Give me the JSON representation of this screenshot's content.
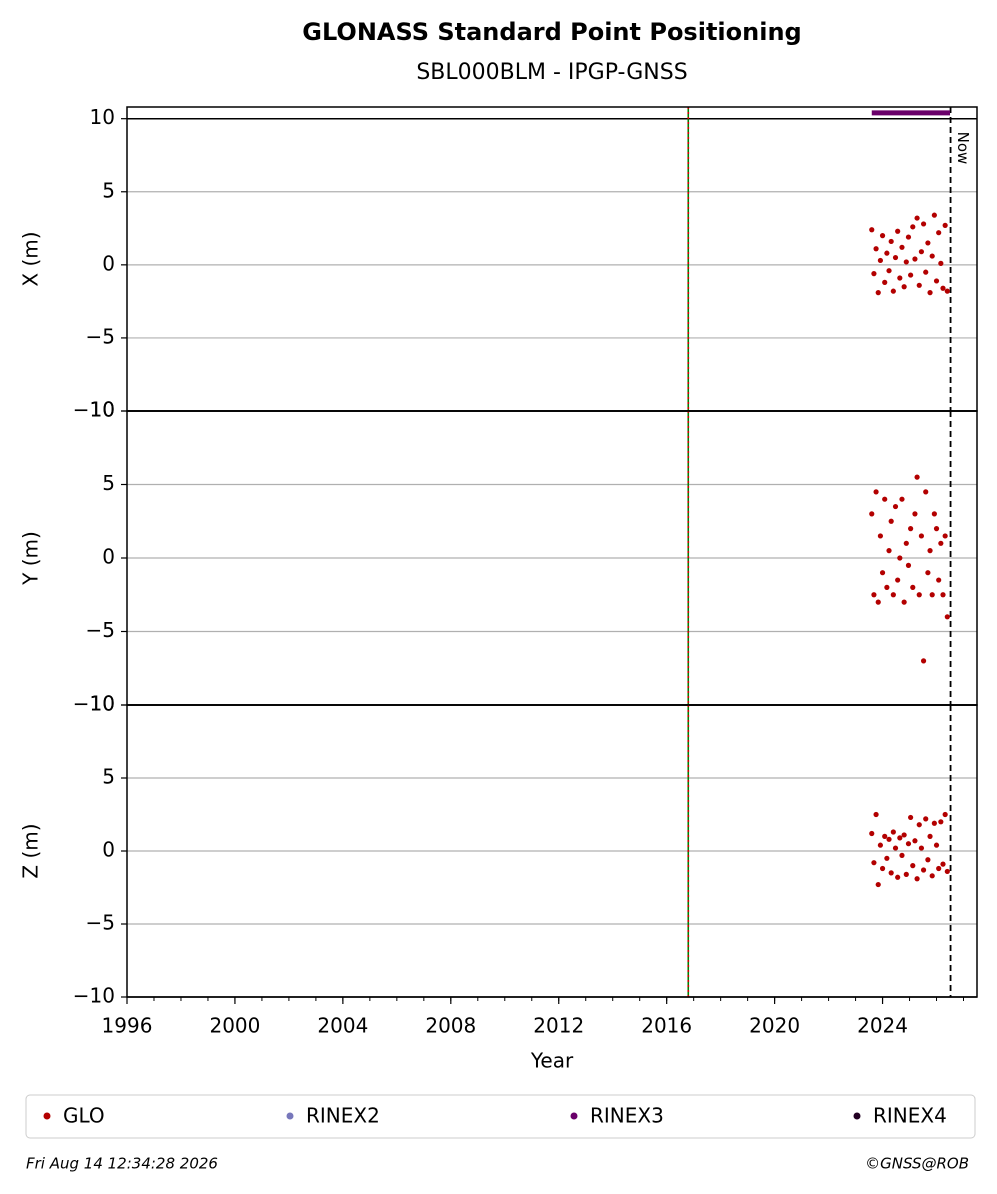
{
  "chart_data": {
    "type": "scatter",
    "title": "GLONASS Standard Point Positioning",
    "subtitle": "SBL000BLM - IPGP-GNSS",
    "xlabel": "Year",
    "xlim": [
      1996,
      2027.5
    ],
    "xticks": [
      1996,
      2000,
      2004,
      2008,
      2012,
      2016,
      2020,
      2024
    ],
    "vlines": [
      {
        "x": 2016.8,
        "color": "#008000",
        "style": "solid"
      },
      {
        "x": 2016.8,
        "color": "#cc0000",
        "style": "dotted"
      }
    ],
    "now": {
      "x": 2026.52,
      "label": "Now"
    },
    "series": [
      {
        "name": "GLO",
        "color": "#b30000"
      },
      {
        "name": "RINEX2",
        "color": "#7777bb"
      },
      {
        "name": "RINEX3",
        "color": "#6a006a"
      },
      {
        "name": "RINEX4",
        "color": "#220022"
      }
    ],
    "panels": [
      {
        "ylabel": "X (m)",
        "ylim": [
          -10,
          10.8
        ],
        "yticks": [
          {
            "value": -10,
            "label": "−10"
          },
          {
            "value": -5,
            "label": "−5"
          },
          0,
          5,
          10
        ],
        "rinex3": {
          "x": [
            2023.6,
            2026.5
          ],
          "values": [
            10.4,
            10.4
          ]
        },
        "points": {
          "x": [
            2023.6,
            2023.68,
            2023.76,
            2023.84,
            2023.92,
            2024.0,
            2024.08,
            2024.16,
            2024.24,
            2024.32,
            2024.4,
            2024.48,
            2024.56,
            2024.64,
            2024.72,
            2024.8,
            2024.88,
            2024.96,
            2025.04,
            2025.12,
            2025.2,
            2025.28,
            2025.36,
            2025.44,
            2025.52,
            2025.6,
            2025.68,
            2025.76,
            2025.84,
            2025.92,
            2026.0,
            2026.08,
            2026.16,
            2026.24,
            2026.32,
            2026.4
          ],
          "values": [
            2.4,
            -0.6,
            1.1,
            -1.9,
            0.3,
            2.0,
            -1.2,
            0.8,
            -0.4,
            1.6,
            -1.8,
            0.5,
            2.3,
            -0.9,
            1.2,
            -1.5,
            0.2,
            1.9,
            -0.7,
            2.6,
            0.4,
            3.2,
            -1.4,
            0.9,
            2.8,
            -0.5,
            1.5,
            -1.9,
            0.6,
            3.4,
            -1.1,
            2.2,
            0.1,
            -1.6,
            2.7,
            -1.8
          ]
        }
      },
      {
        "ylabel": "Y (m)",
        "ylim": [
          -10,
          10
        ],
        "yticks": [
          {
            "value": -10,
            "label": "−10"
          },
          {
            "value": -5,
            "label": "−5"
          },
          0,
          5,
          10
        ],
        "points": {
          "x": [
            2023.6,
            2023.68,
            2023.76,
            2023.84,
            2023.92,
            2024.0,
            2024.08,
            2024.16,
            2024.24,
            2024.32,
            2024.4,
            2024.48,
            2024.56,
            2024.64,
            2024.72,
            2024.8,
            2024.88,
            2024.96,
            2025.04,
            2025.12,
            2025.2,
            2025.28,
            2025.36,
            2025.44,
            2025.52,
            2025.6,
            2025.68,
            2025.76,
            2025.84,
            2025.92,
            2026.0,
            2026.08,
            2026.16,
            2026.24,
            2026.32,
            2026.4
          ],
          "values": [
            3.0,
            -2.5,
            4.5,
            -3.0,
            1.5,
            -1.0,
            4.0,
            -2.0,
            0.5,
            2.5,
            -2.5,
            3.5,
            -1.5,
            0.0,
            4.0,
            -3.0,
            1.0,
            -0.5,
            2.0,
            -2.0,
            3.0,
            5.5,
            -2.5,
            1.5,
            -7.0,
            4.5,
            -1.0,
            0.5,
            -2.5,
            3.0,
            2.0,
            -1.5,
            1.0,
            -2.5,
            1.5,
            -4.0
          ]
        }
      },
      {
        "ylabel": "Z (m)",
        "ylim": [
          -10,
          10
        ],
        "yticks": [
          {
            "value": -10,
            "label": "−10"
          },
          {
            "value": -5,
            "label": "−5"
          },
          0,
          5,
          10
        ],
        "points": {
          "x": [
            2023.6,
            2023.68,
            2023.76,
            2023.84,
            2023.92,
            2024.0,
            2024.08,
            2024.16,
            2024.24,
            2024.32,
            2024.4,
            2024.48,
            2024.56,
            2024.64,
            2024.72,
            2024.8,
            2024.88,
            2024.96,
            2025.04,
            2025.12,
            2025.2,
            2025.28,
            2025.36,
            2025.44,
            2025.52,
            2025.6,
            2025.68,
            2025.76,
            2025.84,
            2025.92,
            2026.0,
            2026.08,
            2026.16,
            2026.24,
            2026.32,
            2026.4
          ],
          "values": [
            1.2,
            -0.8,
            2.5,
            -2.3,
            0.4,
            -1.2,
            1.0,
            -0.5,
            0.8,
            -1.5,
            1.3,
            0.2,
            -1.8,
            0.9,
            -0.3,
            1.1,
            -1.6,
            0.5,
            2.3,
            -1.0,
            0.7,
            -1.9,
            1.8,
            0.2,
            -1.3,
            2.2,
            -0.6,
            1.0,
            -1.7,
            1.9,
            0.4,
            -1.2,
            2.0,
            -0.9,
            2.5,
            -1.4
          ]
        }
      }
    ],
    "timestamp": "Fri Aug 14 12:34:28 2026",
    "credit": "©GNSS@ROB"
  }
}
